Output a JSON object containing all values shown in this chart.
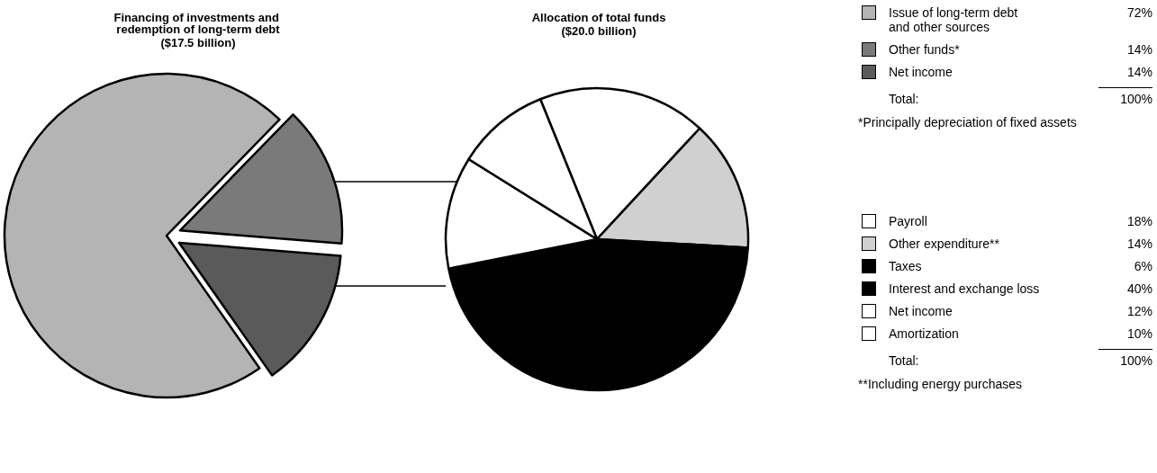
{
  "chart_data": [
    {
      "type": "pie",
      "title": "Financing of investments and redemption of long-term debt",
      "subtitle": "($17.5 billion)",
      "categories": [
        "Issue of long-term debt and other sources",
        "Other funds*",
        "Net income"
      ],
      "values": [
        72,
        14,
        14
      ],
      "colors": [
        "#b4b4b4",
        "#7a7a7a",
        "#5a5a5a"
      ],
      "value_labels": [
        "72%",
        "14%",
        "14%"
      ],
      "legend": "right",
      "annotations": [
        "Total:",
        "100%",
        "*Principally depreciation of fixed assets"
      ]
    },
    {
      "type": "pie",
      "title": "Allocation of total funds",
      "subtitle": "($20.0 billion)",
      "categories": [
        "Payroll",
        "Other expenditure**",
        "Taxes",
        "Interest and exchange loss",
        "Net income",
        "Amortization"
      ],
      "values": [
        18,
        14,
        6,
        40,
        12,
        10
      ],
      "colors": [
        "#ffffff",
        "#d0d0d0",
        "#000000",
        "#000000",
        "#ffffff",
        "#ffffff"
      ],
      "value_labels": [
        "18%",
        "14%",
        "6%",
        "40%",
        "12%",
        "10%"
      ],
      "legend": "right",
      "annotations": [
        "Total:",
        "100%",
        "**Including energy purchases"
      ]
    }
  ]
}
